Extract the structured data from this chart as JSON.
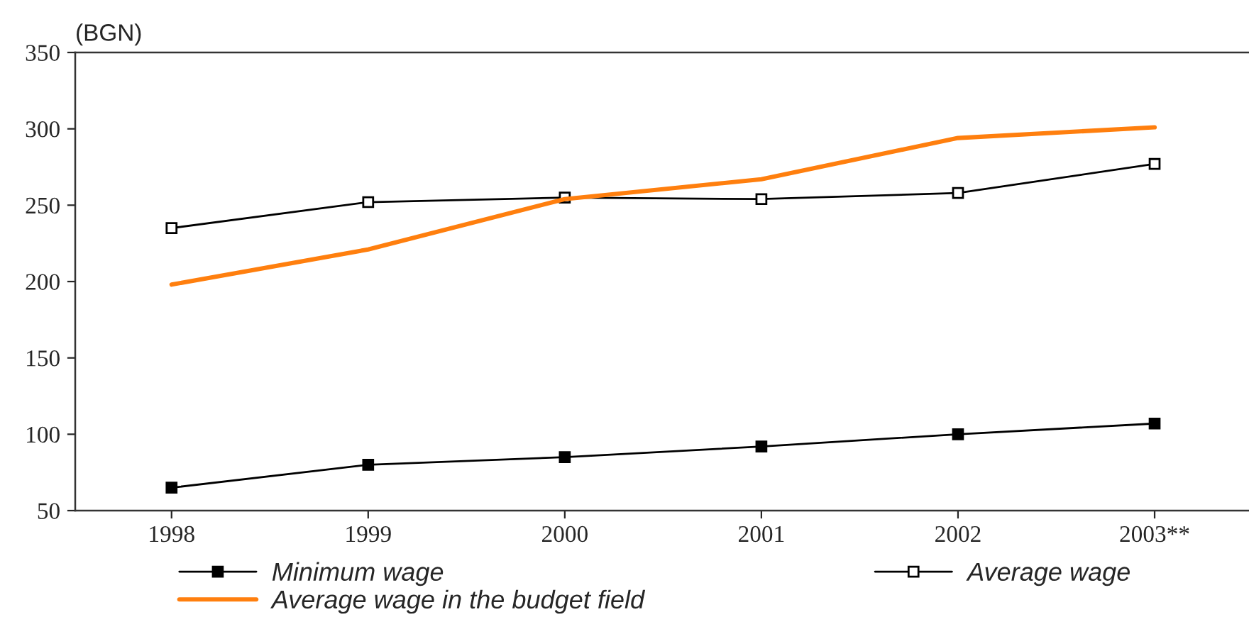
{
  "chart_data": {
    "type": "line",
    "ylabel": "(BGN)",
    "categories": [
      "1998",
      "1999",
      "2000",
      "2001",
      "2002",
      "2003**"
    ],
    "series": [
      {
        "name": "Minimum wage",
        "color": "#000000",
        "marker": "square",
        "values": [
          65,
          80,
          85,
          92,
          100,
          107
        ]
      },
      {
        "name": "Average wage",
        "color": "#000000",
        "marker": "square",
        "values": [
          235,
          252,
          255,
          254,
          258,
          277
        ]
      },
      {
        "name": "Average wage in the budget field",
        "color": "#ff7f0e",
        "marker": "none",
        "values": [
          198,
          221,
          254,
          267,
          294,
          301
        ]
      }
    ],
    "ylim": [
      50,
      350
    ],
    "yticks": [
      50,
      100,
      150,
      200,
      250,
      300,
      350
    ],
    "grid": false,
    "legend": "bottom"
  }
}
